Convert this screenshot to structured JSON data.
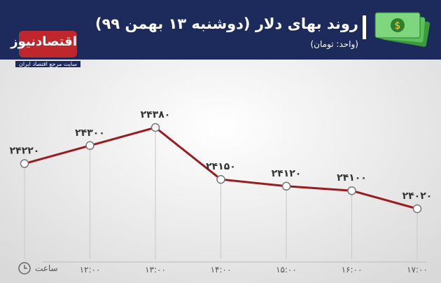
{
  "chart_data": {
    "type": "line",
    "title": "روند بهای دلار (دوشنبه ۱۳ بهمن ۹۹)",
    "subtitle": "(واحد: تومان)",
    "brand": "اقتصادنیوز",
    "brand_tagline": "سایت مرجع اقتصاد ایران",
    "x_label": "ساعت",
    "categories": [
      null,
      "۱۲:۰۰",
      "۱۳:۰۰",
      "۱۴:۰۰",
      "۱۵:۰۰",
      "۱۶:۰۰",
      "۱۷:۰۰"
    ],
    "values": [
      24220,
      24300,
      24380,
      24150,
      24120,
      24100,
      24020
    ],
    "value_labels": [
      "۲۴۲۲۰",
      "۲۴۳۰۰",
      "۲۴۳۸۰",
      "۲۴۱۵۰",
      "۲۴۱۲۰",
      "۲۴۱۰۰",
      "۲۴۰۲۰"
    ],
    "color": "#9b1c1f"
  }
}
